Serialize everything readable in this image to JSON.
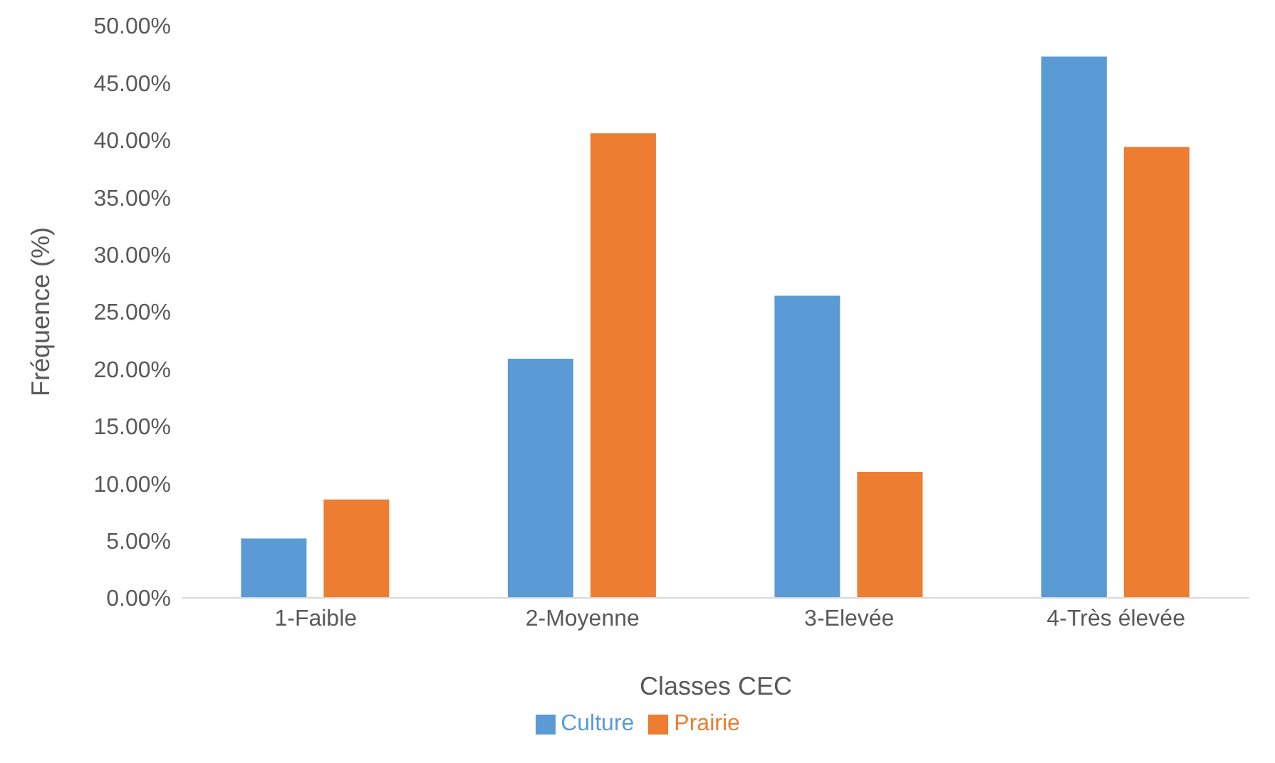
{
  "chart_data": {
    "type": "bar",
    "xlabel": "Classes CEC",
    "ylabel": "Fréquence (%)",
    "categories": [
      "1-Faible",
      "2-Moyenne",
      "3-Elevée",
      "4-Très élevée"
    ],
    "series": [
      {
        "name": "Culture",
        "color": "#5b9bd5",
        "values": [
          5.2,
          20.9,
          26.4,
          47.3
        ]
      },
      {
        "name": "Prairie",
        "color": "#ed7d31",
        "values": [
          8.6,
          40.6,
          11.0,
          39.4
        ]
      }
    ],
    "ylim": [
      0,
      50
    ],
    "yticks": [
      {
        "value": 0,
        "label": "0.00%"
      },
      {
        "value": 5,
        "label": "5.00%"
      },
      {
        "value": 10,
        "label": "10.00%"
      },
      {
        "value": 15,
        "label": "15.00%"
      },
      {
        "value": 20,
        "label": "20.00%"
      },
      {
        "value": 25,
        "label": "25.00%"
      },
      {
        "value": 30,
        "label": "30.00%"
      },
      {
        "value": 35,
        "label": "35.00%"
      },
      {
        "value": 40,
        "label": "40.00%"
      },
      {
        "value": 45,
        "label": "45.00%"
      },
      {
        "value": 50,
        "label": "50.00%"
      }
    ],
    "grid": false,
    "legend": "bottom"
  }
}
